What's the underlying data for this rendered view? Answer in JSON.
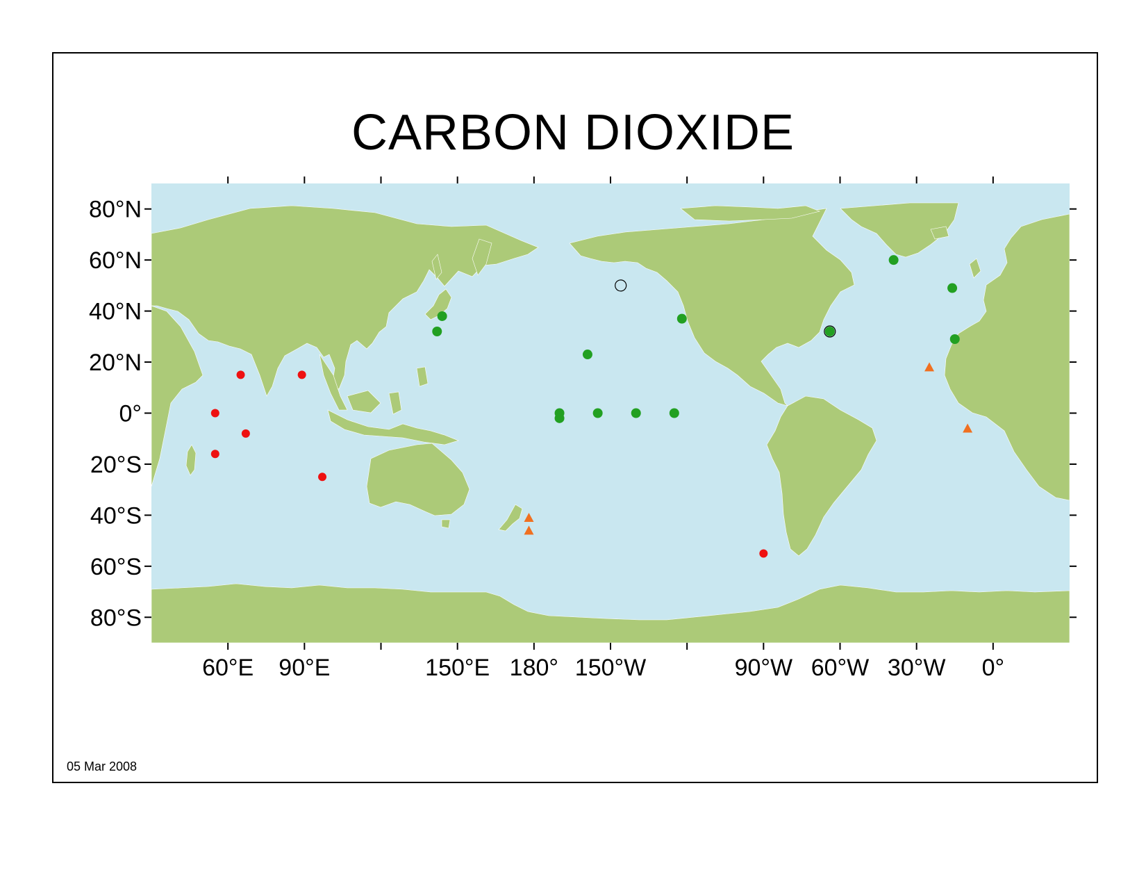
{
  "title": "CARBON DIOXIDE",
  "date": "05 Mar 2008",
  "colors": {
    "ocean": "#c9e7f0",
    "land": "#acca78",
    "red_sites": "#ee1111",
    "green_sites": "#22a022",
    "orange_sites": "#f07020"
  },
  "axes": {
    "lon_labels": [
      "60°E",
      "90°E",
      "150°E",
      "180°",
      "150°W",
      "90°W",
      "60°W",
      "30°W",
      "0°"
    ],
    "lat_labels": [
      "80°N",
      "60°N",
      "40°N",
      "20°N",
      "0°",
      "20°S",
      "40°S",
      "60°S",
      "80°S"
    ]
  },
  "map": {
    "projection": "equirectangular, Pacific-centred",
    "lon_range": [
      30,
      390
    ],
    "lat_range": [
      -90,
      90
    ]
  },
  "sites": {
    "red_circles": [
      {
        "lon": 55,
        "lat": 0
      },
      {
        "lon": 65,
        "lat": 15
      },
      {
        "lon": 67,
        "lat": -8
      },
      {
        "lon": 55,
        "lat": -16
      },
      {
        "lon": 89,
        "lat": 15
      },
      {
        "lon": 97,
        "lat": -25
      },
      {
        "lon": 270,
        "lat": -55
      }
    ],
    "green_circles": [
      {
        "lon": 144,
        "lat": 38
      },
      {
        "lon": 142,
        "lat": 32
      },
      {
        "lon": 190,
        "lat": 0
      },
      {
        "lon": 190,
        "lat": -2
      },
      {
        "lon": 205,
        "lat": 0
      },
      {
        "lon": 201,
        "lat": 23
      },
      {
        "lon": 220,
        "lat": 0
      },
      {
        "lon": 235,
        "lat": 0
      },
      {
        "lon": 238,
        "lat": 37
      },
      {
        "lon": 296,
        "lat": 32
      },
      {
        "lon": 321,
        "lat": 60
      },
      {
        "lon": 344,
        "lat": 49
      },
      {
        "lon": 345,
        "lat": 29
      }
    ],
    "open_circles": [
      {
        "lon": 214,
        "lat": 50
      },
      {
        "lon": 296,
        "lat": 32
      }
    ],
    "orange_triangles": [
      {
        "lon": 178,
        "lat": -41
      },
      {
        "lon": 178,
        "lat": -46
      },
      {
        "lon": 335,
        "lat": 18
      },
      {
        "lon": 350,
        "lat": -6
      }
    ]
  }
}
